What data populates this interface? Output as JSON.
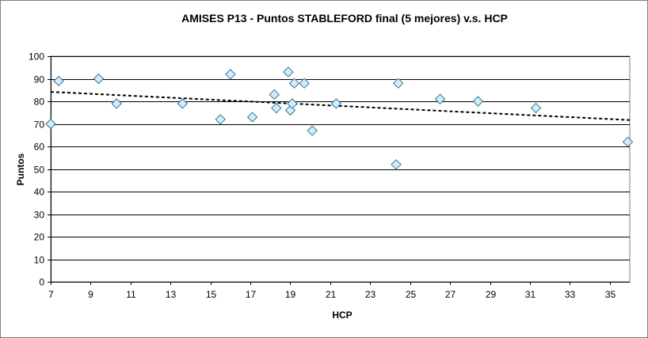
{
  "chart_data": {
    "type": "scatter",
    "title": "AMISES P13 - Puntos STABLEFORD final (5 mejores) v.s. HCP",
    "xlabel": "HCP",
    "ylabel": "Puntos",
    "xlim": [
      7,
      36
    ],
    "ylim": [
      0,
      100
    ],
    "x_ticks": [
      7,
      9,
      11,
      13,
      15,
      17,
      19,
      21,
      23,
      25,
      27,
      29,
      31,
      33,
      35
    ],
    "y_ticks": [
      0,
      10,
      20,
      30,
      40,
      50,
      60,
      70,
      80,
      90,
      100
    ],
    "grid": "horizontal",
    "legend": "none",
    "marker": "diamond",
    "colors": {
      "marker_fill": "#cceeff",
      "marker_stroke": "#3f6f8f",
      "trendline": "#000000",
      "gridline": "#000000",
      "plot_background": "#ffffff"
    },
    "points": [
      {
        "x": 7.0,
        "y": 70
      },
      {
        "x": 7.4,
        "y": 89
      },
      {
        "x": 9.4,
        "y": 90
      },
      {
        "x": 10.3,
        "y": 79
      },
      {
        "x": 13.6,
        "y": 79
      },
      {
        "x": 15.5,
        "y": 72
      },
      {
        "x": 16.0,
        "y": 92
      },
      {
        "x": 17.1,
        "y": 73
      },
      {
        "x": 18.2,
        "y": 83
      },
      {
        "x": 18.3,
        "y": 77
      },
      {
        "x": 18.9,
        "y": 93
      },
      {
        "x": 19.0,
        "y": 76
      },
      {
        "x": 19.1,
        "y": 79
      },
      {
        "x": 19.2,
        "y": 88
      },
      {
        "x": 19.7,
        "y": 88
      },
      {
        "x": 20.1,
        "y": 67
      },
      {
        "x": 21.3,
        "y": 79
      },
      {
        "x": 24.3,
        "y": 52
      },
      {
        "x": 24.4,
        "y": 88
      },
      {
        "x": 26.5,
        "y": 81
      },
      {
        "x": 28.4,
        "y": 80
      },
      {
        "x": 31.3,
        "y": 77
      },
      {
        "x": 35.9,
        "y": 62
      }
    ],
    "trendline": {
      "type": "linear",
      "x": [
        7,
        36
      ],
      "y": [
        84.2,
        71.7
      ]
    }
  }
}
